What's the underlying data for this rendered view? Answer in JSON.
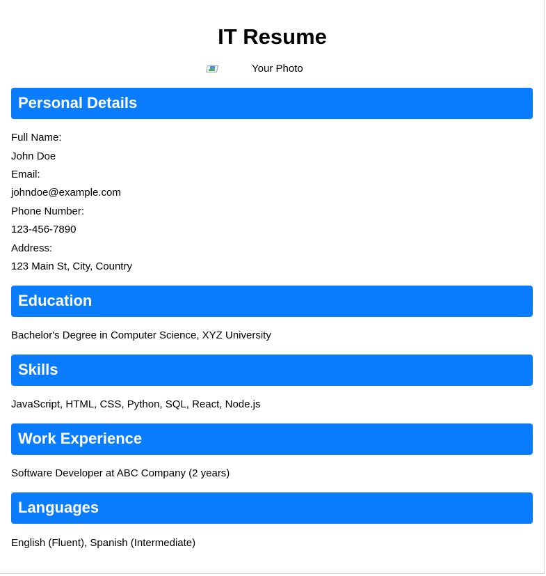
{
  "title": "IT Resume",
  "photo": {
    "icon": "broken-image-icon",
    "alt_text": "Your Photo"
  },
  "sections": {
    "personal": {
      "heading": "Personal Details",
      "full_name_label": "Full Name:",
      "full_name": "John Doe",
      "email_label": "Email:",
      "email": "johndoe@example.com",
      "phone_label": "Phone Number:",
      "phone": "123-456-7890",
      "address_label": "Address:",
      "address": "123 Main St, City, Country"
    },
    "education": {
      "heading": "Education",
      "text": "Bachelor's Degree in Computer Science, XYZ University"
    },
    "skills": {
      "heading": "Skills",
      "text": "JavaScript, HTML, CSS, Python, SQL, React, Node.js"
    },
    "experience": {
      "heading": "Work Experience",
      "text": "Software Developer at ABC Company (2 years)"
    },
    "languages": {
      "heading": "Languages",
      "text": "English (Fluent), Spanish (Intermediate)"
    }
  },
  "colors": {
    "header_bg": "#0a7cff",
    "header_text": "#ffffff",
    "body_text": "#000000"
  }
}
